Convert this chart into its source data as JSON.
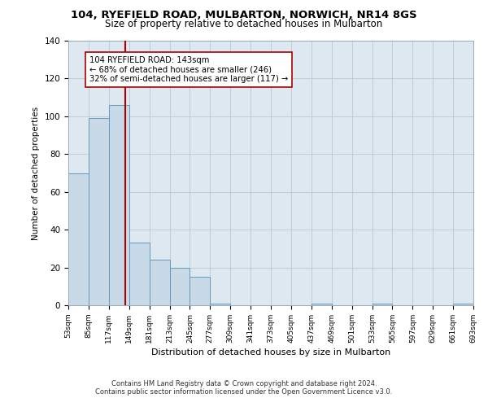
{
  "title1": "104, RYEFIELD ROAD, MULBARTON, NORWICH, NR14 8GS",
  "title2": "Size of property relative to detached houses in Mulbarton",
  "xlabel": "Distribution of detached houses by size in Mulbarton",
  "ylabel": "Number of detached properties",
  "bin_edges": [
    53,
    85,
    117,
    149,
    181,
    213,
    245,
    277,
    309,
    341,
    373,
    405,
    437,
    469,
    501,
    533,
    565,
    597,
    629,
    661,
    693
  ],
  "bin_counts": [
    70,
    99,
    106,
    33,
    24,
    20,
    15,
    1,
    0,
    0,
    0,
    0,
    1,
    0,
    0,
    1,
    0,
    0,
    0,
    1
  ],
  "property_size": 143,
  "bar_facecolor": "#c8d9e8",
  "bar_edgecolor": "#6699bb",
  "vline_color": "#aa0000",
  "annotation_line1": "104 RYEFIELD ROAD: 143sqm",
  "annotation_line2": "← 68% of detached houses are smaller (246)",
  "annotation_line3": "32% of semi-detached houses are larger (117) →",
  "annotation_boxcolor": "#ffffff",
  "annotation_boxedge": "#aa0000",
  "ylim": [
    0,
    140
  ],
  "yticks": [
    0,
    20,
    40,
    60,
    80,
    100,
    120,
    140
  ],
  "background_color": "#dde8f0",
  "footer1": "Contains HM Land Registry data © Crown copyright and database right 2024.",
  "footer2": "Contains public sector information licensed under the Open Government Licence v3.0."
}
